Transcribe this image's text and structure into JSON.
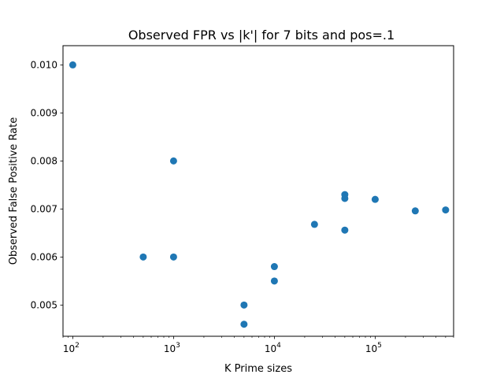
{
  "chart_data": {
    "type": "scatter",
    "title": "Observed FPR vs |k'| for 7 bits and pos=.1",
    "xlabel": "K Prime sizes",
    "ylabel": "Observed False Positive Rate",
    "xscale": "log",
    "xlim": [
      80,
      600000
    ],
    "ylim": [
      0.00435,
      0.0104
    ],
    "grid": false,
    "legend": "none",
    "marker_color": "#1f77b4",
    "x_ticks": [
      {
        "value": 100,
        "base": "10",
        "exp": "2"
      },
      {
        "value": 1000,
        "base": "10",
        "exp": "3"
      },
      {
        "value": 10000,
        "base": "10",
        "exp": "4"
      },
      {
        "value": 100000,
        "base": "10",
        "exp": "5"
      }
    ],
    "y_ticks": [
      {
        "value": 0.005,
        "label": "0.005"
      },
      {
        "value": 0.006,
        "label": "0.006"
      },
      {
        "value": 0.007,
        "label": "0.007"
      },
      {
        "value": 0.008,
        "label": "0.008"
      },
      {
        "value": 0.009,
        "label": "0.009"
      },
      {
        "value": 0.01,
        "label": "0.010"
      }
    ],
    "points": [
      {
        "x": 100,
        "y": 0.01
      },
      {
        "x": 500,
        "y": 0.006
      },
      {
        "x": 1000,
        "y": 0.008
      },
      {
        "x": 1000,
        "y": 0.006
      },
      {
        "x": 5000,
        "y": 0.005
      },
      {
        "x": 5000,
        "y": 0.0046
      },
      {
        "x": 10000,
        "y": 0.0058
      },
      {
        "x": 10000,
        "y": 0.0055
      },
      {
        "x": 25000,
        "y": 0.00668
      },
      {
        "x": 50000,
        "y": 0.0073
      },
      {
        "x": 50000,
        "y": 0.00722
      },
      {
        "x": 50000,
        "y": 0.00656
      },
      {
        "x": 100000,
        "y": 0.0072
      },
      {
        "x": 250000,
        "y": 0.00696
      },
      {
        "x": 500000,
        "y": 0.00698
      }
    ]
  }
}
